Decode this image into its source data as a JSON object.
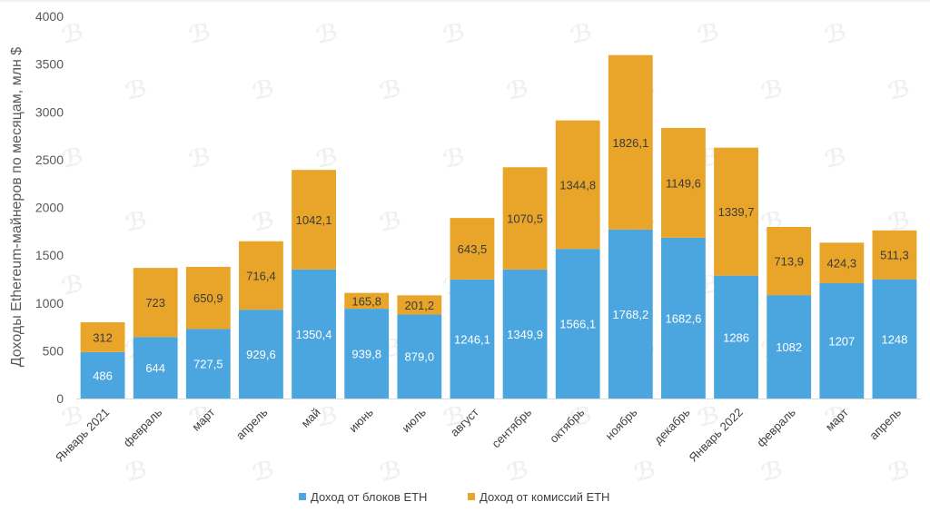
{
  "chart_data": {
    "type": "bar",
    "stacked": true,
    "title": "",
    "xlabel": "",
    "ylabel": "Доходы Ethereum-майнеров по месяцам, млн $",
    "ylim": [
      0,
      4000
    ],
    "yticks": [
      0,
      500,
      1000,
      1500,
      2000,
      2500,
      3000,
      3500,
      4000
    ],
    "categories": [
      "Январь 2021",
      "февраль",
      "март",
      "апрель",
      "май",
      "июнь",
      "июль",
      "август",
      "сентябрь",
      "октябрь",
      "ноябрь",
      "декабрь",
      "Январь 2022",
      "февраль",
      "март",
      "апрель"
    ],
    "series": [
      {
        "name": "Доход от блоков ETH",
        "color": "#4ba6e0",
        "values": [
          486,
          644,
          727.5,
          929.6,
          1350.4,
          939.8,
          879.0,
          1246.1,
          1349.9,
          1566.1,
          1768.2,
          1682.6,
          1286,
          1082,
          1207,
          1248
        ],
        "labels": [
          "486",
          "644",
          "727,5",
          "929,6",
          "1350,4",
          "939,8",
          "879,0",
          "1246,1",
          "1349,9",
          "1566,1",
          "1768,2",
          "1682,6",
          "1286",
          "1082",
          "1207",
          "1248"
        ]
      },
      {
        "name": "Доход от комиссий ETH",
        "color": "#e8a52a",
        "values": [
          312,
          723,
          650.9,
          716.4,
          1042.1,
          165.8,
          201.2,
          643.5,
          1070.5,
          1344.8,
          1826.1,
          1149.6,
          1339.7,
          713.9,
          424.3,
          511.3
        ],
        "labels": [
          "312",
          "723",
          "650,9",
          "716,4",
          "1042,1",
          "165,8",
          "201,2",
          "643,5",
          "1070,5",
          "1344,8",
          "1826,1",
          "1149,6",
          "1339,7",
          "713,9",
          "424,3",
          "511,3"
        ]
      }
    ],
    "legend_position": "bottom",
    "grid": false
  }
}
